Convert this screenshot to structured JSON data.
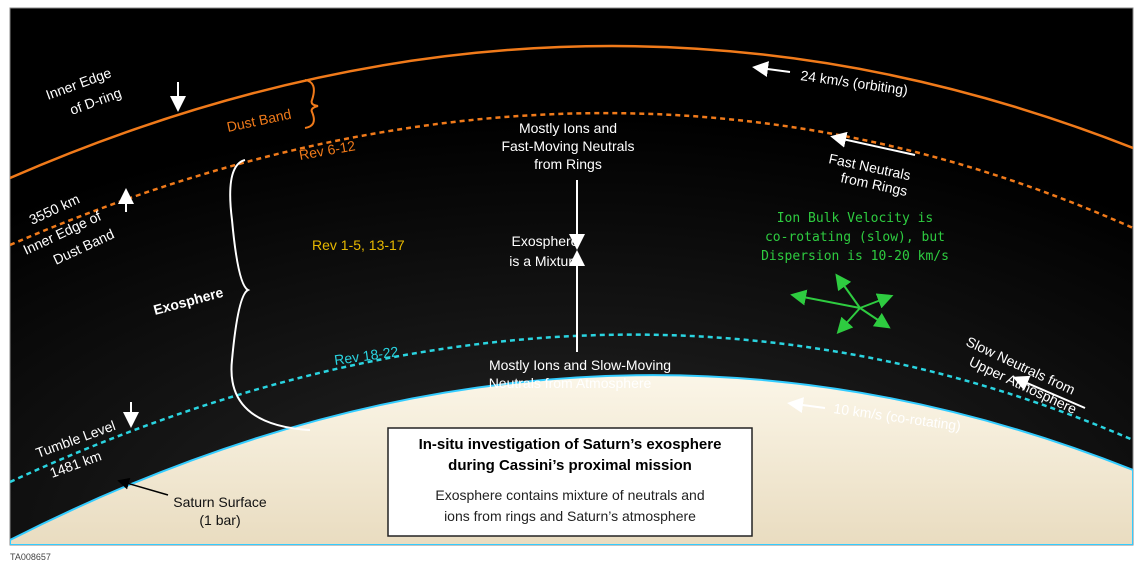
{
  "labels": {
    "inner_edge_d_ring": [
      "Inner Edge",
      "of D-ring"
    ],
    "dust_band": "Dust Band",
    "rev_6_12": "Rev 6-12",
    "km_3550": "3550 km",
    "inner_edge_dust_band": [
      "Inner Edge of",
      "Dust Band"
    ],
    "rev_1_5": "Rev 1-5, 13-17",
    "exosphere": "Exosphere",
    "rev_18_22": "Rev 18-22",
    "tumble_level": [
      "Tumble Level",
      "1481 km"
    ],
    "saturn_surface": [
      "Saturn Surface",
      "(1 bar)"
    ],
    "orbiting": "24 km/s (orbiting)",
    "fast_neutrals": [
      "Fast Neutrals",
      "from Rings"
    ],
    "ion_bulk": [
      "Ion Bulk Velocity is",
      "co-rotating (slow), but",
      "Dispersion is 10-20 km/s"
    ],
    "slow_neutrals": [
      "Slow Neutrals from",
      "Upper Atmosphere"
    ],
    "co_rotating": "10 km/s (co-rotating)",
    "mostly_ions_fast": [
      "Mostly Ions and",
      "Fast-Moving Neutrals",
      "from Rings"
    ],
    "exosphere_mixture": [
      "Exosphere",
      "is a Mixture"
    ],
    "mostly_ions_slow": [
      "Mostly Ions and Slow-Moving",
      "Neutrals from Atmosphere"
    ]
  },
  "box": {
    "title": [
      "In-situ investigation of Saturn’s exosphere",
      "during Cassini’s proximal mission"
    ],
    "body": [
      "Exosphere contains mixture of neutrals and",
      "ions from rings and Saturn’s atmosphere"
    ]
  },
  "figure_id": "TA008657"
}
